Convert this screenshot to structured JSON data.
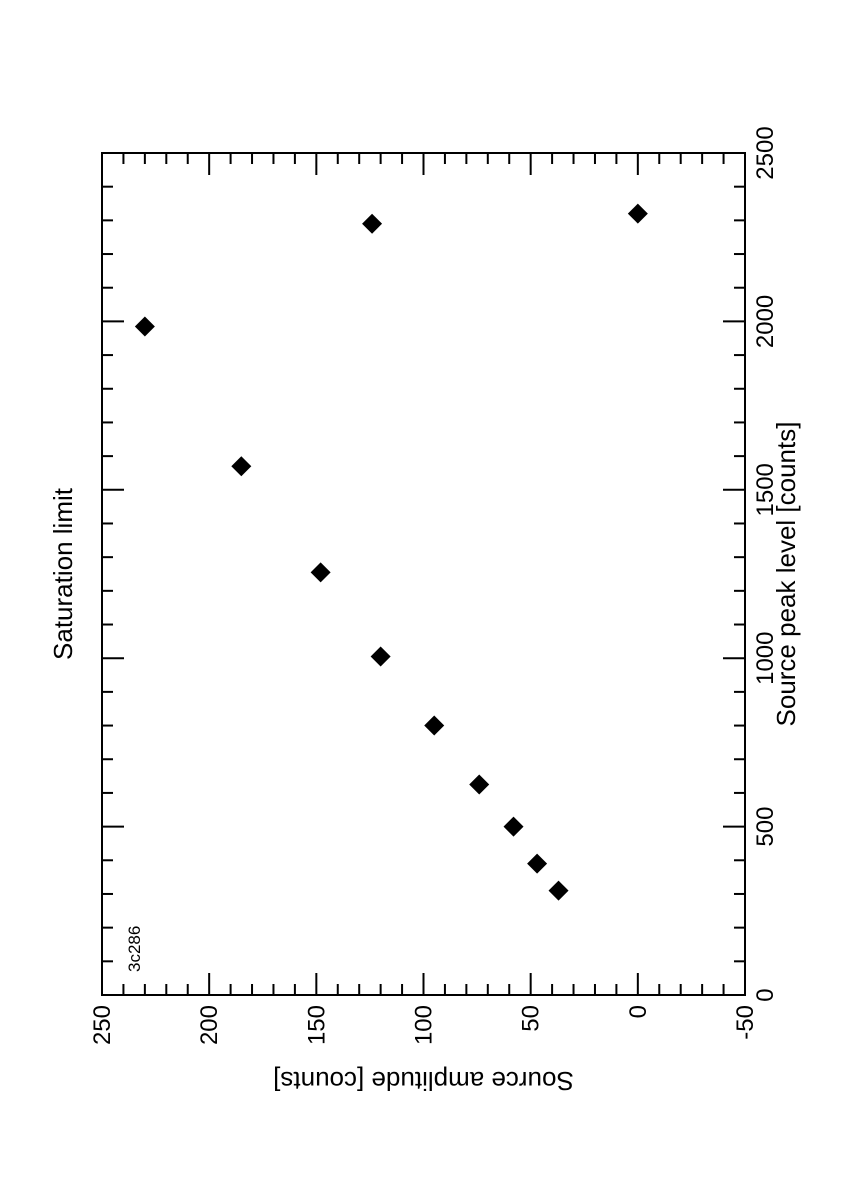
{
  "chart_data": {
    "type": "scatter",
    "title": "Saturation limit",
    "xlabel": "Source peak level [counts]",
    "ylabel": "Source amplitude [counts]",
    "annotation": "3c286",
    "xlim": [
      0,
      2500
    ],
    "ylim": [
      -50,
      250
    ],
    "orientation": "rotated 90° (landscape page)",
    "marker": "diamond",
    "marker_color": "#000000",
    "x_major_ticks": [
      0,
      500,
      1000,
      1500,
      2000,
      2500
    ],
    "x_tick_labels": [
      "0",
      "500",
      "1000",
      "1500",
      "2000",
      "2500"
    ],
    "y_major_ticks": [
      -50,
      0,
      50,
      100,
      150,
      200,
      250
    ],
    "y_tick_labels": [
      "-50",
      "0",
      "50",
      "100",
      "150",
      "200",
      "250"
    ],
    "x_minor_step": 100,
    "y_minor_step": 10,
    "points": [
      {
        "x": 310,
        "y": 37
      },
      {
        "x": 390,
        "y": 47
      },
      {
        "x": 500,
        "y": 58
      },
      {
        "x": 625,
        "y": 74
      },
      {
        "x": 800,
        "y": 95
      },
      {
        "x": 1005,
        "y": 120
      },
      {
        "x": 1255,
        "y": 148
      },
      {
        "x": 1570,
        "y": 185
      },
      {
        "x": 1985,
        "y": 230
      },
      {
        "x": 2290,
        "y": 124
      },
      {
        "x": 2320,
        "y": 0
      }
    ]
  }
}
